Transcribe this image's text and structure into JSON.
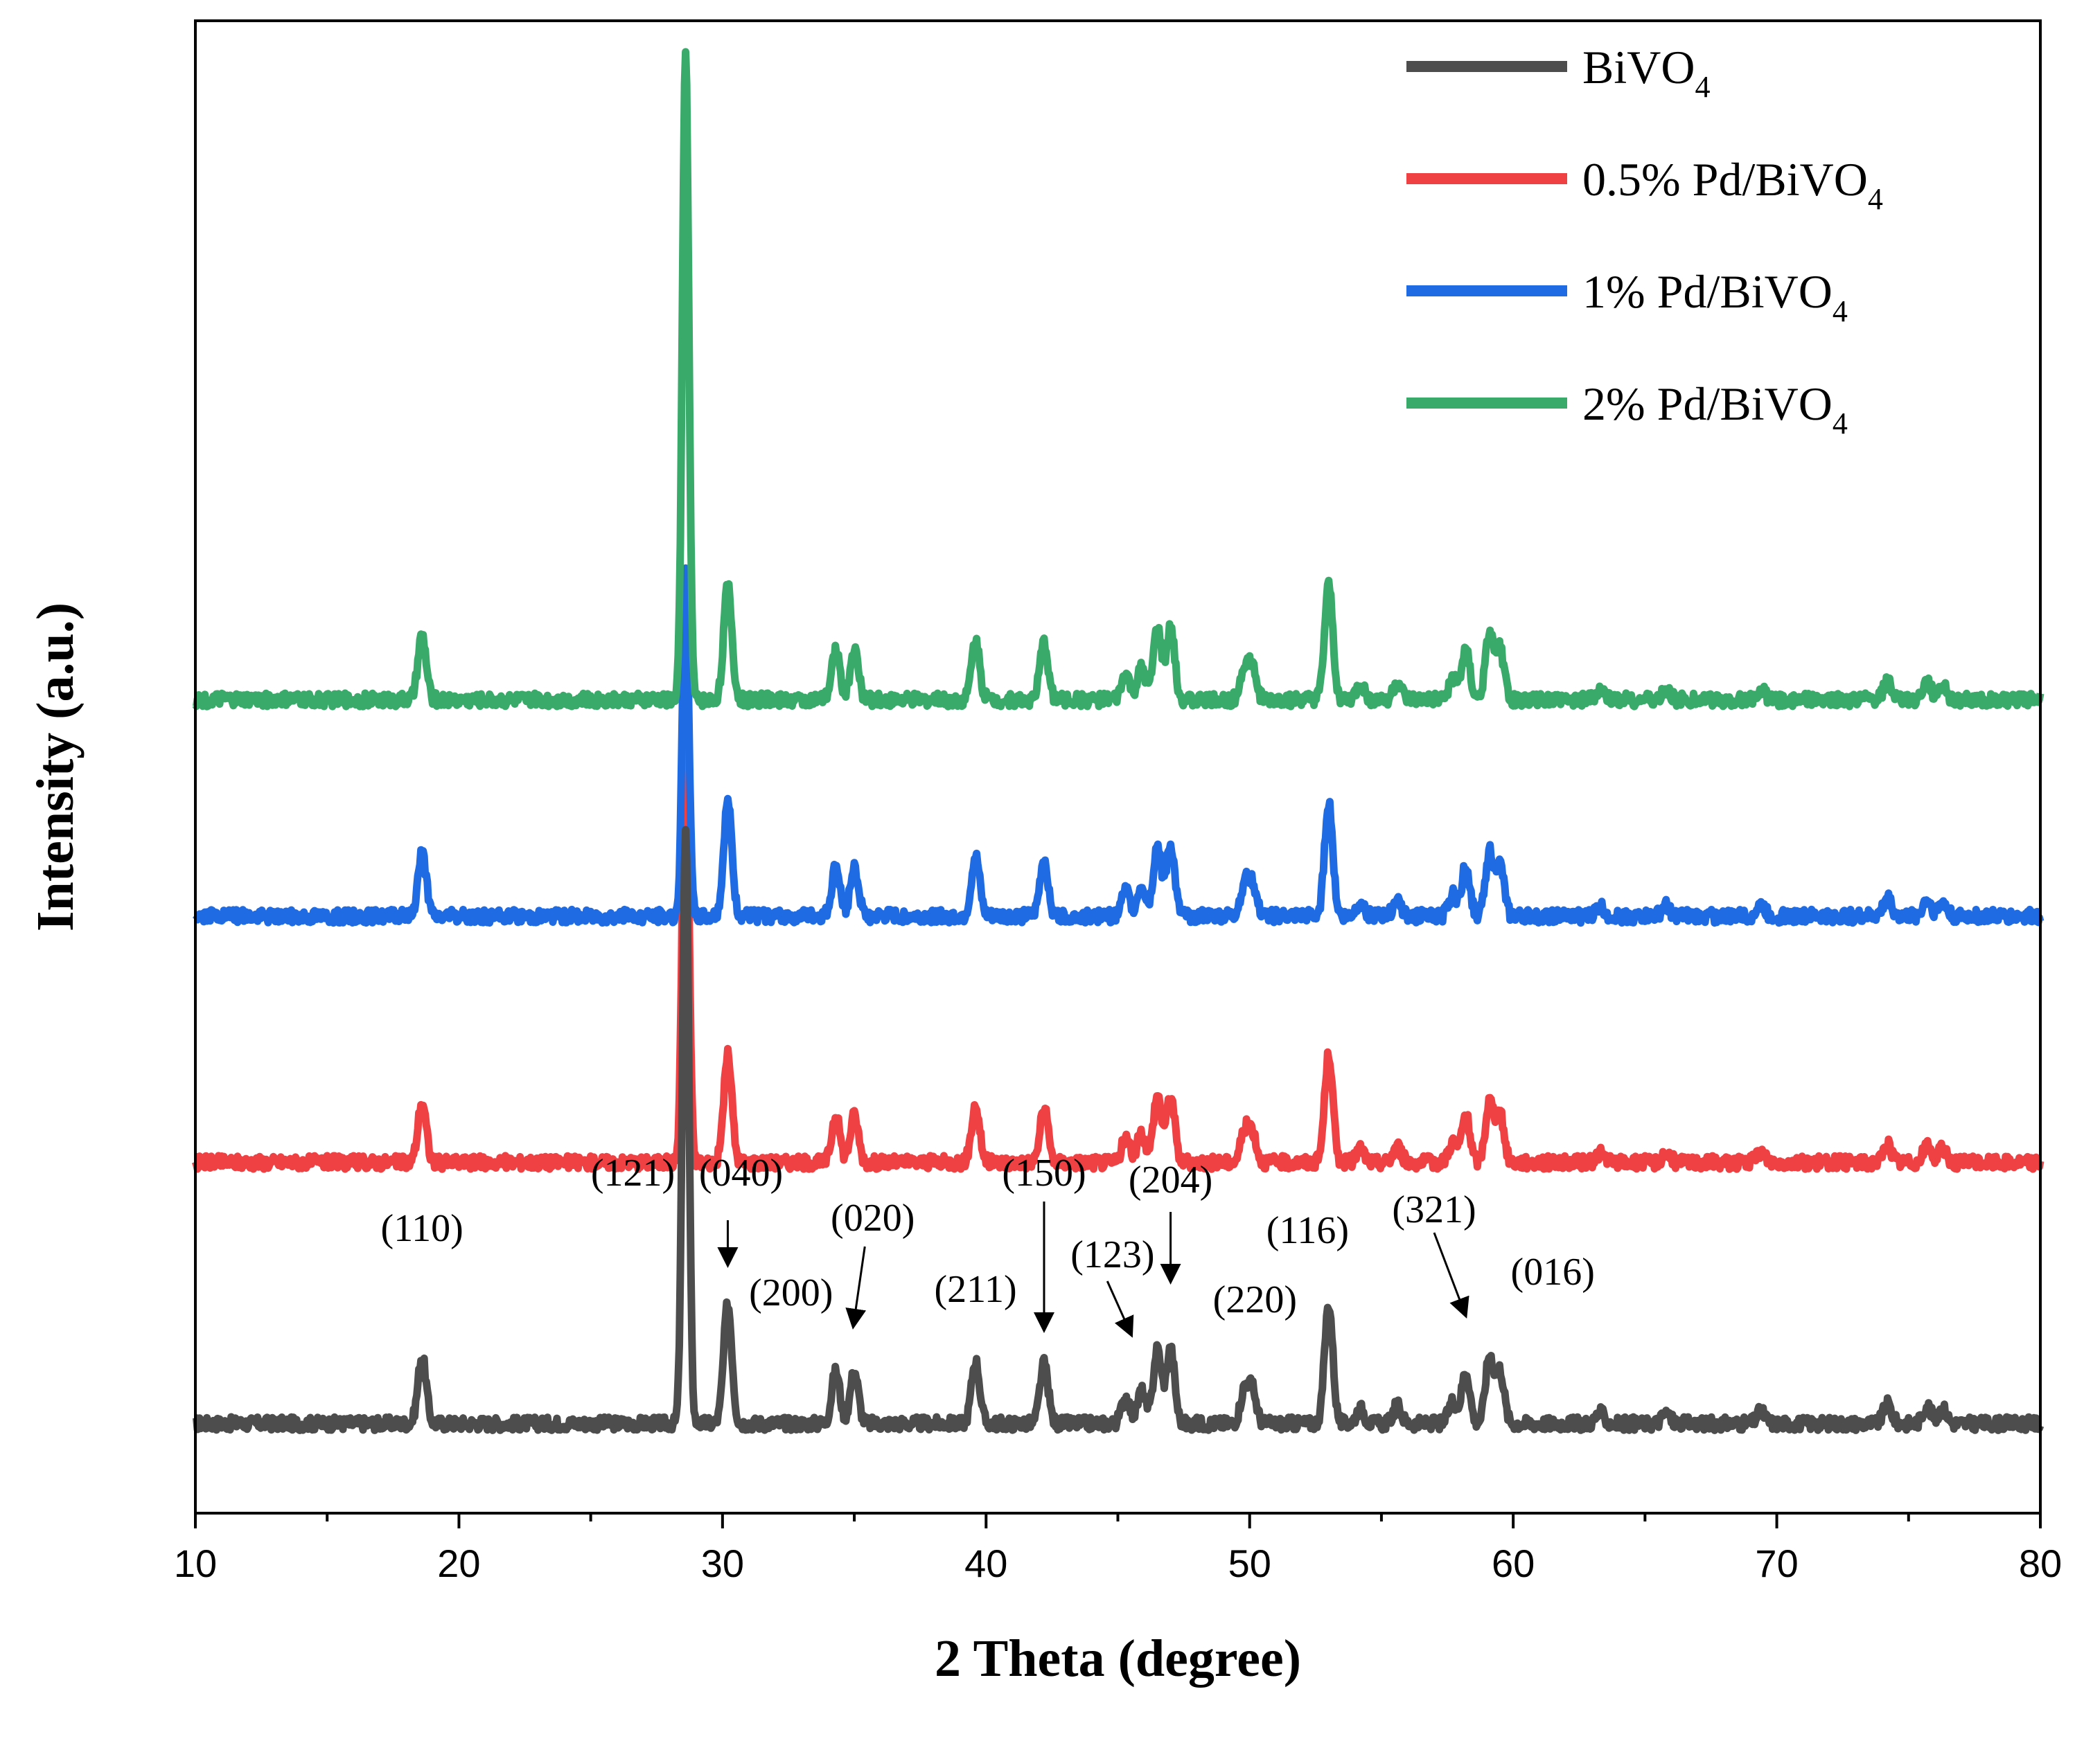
{
  "chart_data": {
    "type": "line",
    "title": "",
    "xlabel": "2 Theta (degree)",
    "ylabel": "Intensity (a.u.)",
    "xlim": [
      10,
      80
    ],
    "ylim": [
      0,
      100
    ],
    "x_ticks": [
      10,
      20,
      30,
      40,
      50,
      60,
      70,
      80
    ],
    "x_tick_labels": [
      "10",
      "20",
      "30",
      "40",
      "50",
      "60",
      "70",
      "80"
    ],
    "legend_position": "top-right",
    "peak_positions": [
      18.6,
      28.6,
      30.2,
      34.3,
      35.0,
      39.6,
      42.2,
      45.3,
      45.9,
      46.5,
      47.0,
      49.8,
      50.1,
      53.0,
      54.2,
      55.6,
      57.7,
      58.2,
      59.1,
      59.5,
      63.3,
      65.8,
      69.4,
      74.2,
      75.7,
      76.3
    ],
    "peak_intensities": [
      4.5,
      40,
      8,
      3.5,
      3.5,
      4.2,
      4,
      1.8,
      2.2,
      5,
      5,
      2.2,
      2.2,
      8,
      1,
      1.2,
      1.5,
      3.5,
      4.5,
      3.5,
      0.7,
      0.7,
      0.8,
      1.3,
      1.2,
      1
    ],
    "series": [
      {
        "name": "BiVO",
        "name_sub": "4",
        "prefix": "",
        "color": "#4d4d4d",
        "offset": 6,
        "main_peak": 40,
        "peak_scale": 1.0
      },
      {
        "name": "0.5% Pd/BiVO",
        "name_sub": "4",
        "prefix": "",
        "color": "#ef4043",
        "offset": 23.5,
        "main_peak": 31,
        "peak_scale": 0.9
      },
      {
        "name": "1% Pd/BiVO",
        "name_sub": "4",
        "prefix": "",
        "color": "#1f6be3",
        "offset": 40,
        "main_peak": 23,
        "peak_scale": 0.95
      },
      {
        "name": "2% Pd/BiVO",
        "name_sub": "4",
        "prefix": "",
        "color": "#3aaa6a",
        "offset": 54.5,
        "main_peak": 43.5,
        "peak_scale": 0.95
      }
    ],
    "annotations": [
      {
        "label": "(110)",
        "x": 18.6,
        "series": 0
      },
      {
        "label": "(121)",
        "x": 28.6,
        "series": 0
      },
      {
        "label": "(040)",
        "x": 30.2,
        "series": 0
      },
      {
        "label": "(200)",
        "x": 34.3,
        "series": 0
      },
      {
        "label": "(020)",
        "x": 35.0,
        "series": 0
      },
      {
        "label": "(211)",
        "x": 39.6,
        "series": 0
      },
      {
        "label": "(150)",
        "x": 42.2,
        "series": 0
      },
      {
        "label": "(123)",
        "x": 45.9,
        "series": 0
      },
      {
        "label": "(204)",
        "x": 47.0,
        "series": 0
      },
      {
        "label": "(220)",
        "x": 50.0,
        "series": 0
      },
      {
        "label": "(116)",
        "x": 53.0,
        "series": 0
      },
      {
        "label": "(321)",
        "x": 58.2,
        "series": 0
      },
      {
        "label": "(016)",
        "x": 59.3,
        "series": 0
      }
    ]
  }
}
